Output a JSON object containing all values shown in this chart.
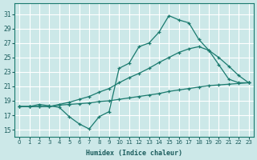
{
  "background_color": "#cce8e8",
  "grid_color": "#aacccc",
  "line_color": "#1a7a6e",
  "xlabel": "Humidex (Indice chaleur)",
  "xlim": [
    -0.5,
    23.5
  ],
  "ylim": [
    14,
    32.5
  ],
  "xticks": [
    0,
    1,
    2,
    3,
    4,
    5,
    6,
    7,
    8,
    9,
    10,
    11,
    12,
    13,
    14,
    15,
    16,
    17,
    18,
    19,
    20,
    21,
    22,
    23
  ],
  "yticks": [
    15,
    17,
    19,
    21,
    23,
    25,
    27,
    29,
    31
  ],
  "line1_x": [
    0,
    1,
    2,
    3,
    4,
    5,
    6,
    7,
    8,
    9,
    10,
    11,
    12,
    13,
    14,
    15,
    16,
    17,
    18,
    19,
    20,
    21,
    22,
    23
  ],
  "line1_y": [
    18.2,
    18.2,
    18.2,
    18.2,
    18.4,
    18.5,
    18.6,
    18.7,
    18.9,
    19.0,
    19.2,
    19.4,
    19.6,
    19.8,
    20.0,
    20.3,
    20.5,
    20.7,
    20.9,
    21.1,
    21.2,
    21.3,
    21.4,
    21.5
  ],
  "line2_x": [
    0,
    1,
    2,
    3,
    4,
    5,
    6,
    7,
    8,
    9,
    10,
    11,
    12,
    13,
    14,
    15,
    16,
    17,
    18,
    19,
    20,
    21,
    22,
    23
  ],
  "line2_y": [
    18.2,
    18.2,
    18.2,
    18.2,
    18.5,
    18.8,
    19.2,
    19.6,
    20.2,
    20.7,
    21.5,
    22.2,
    22.8,
    23.5,
    24.3,
    25.0,
    25.7,
    26.2,
    26.5,
    26.0,
    25.0,
    23.8,
    22.5,
    21.5
  ],
  "line3_x": [
    0,
    1,
    2,
    3,
    4,
    5,
    6,
    7,
    8,
    9,
    10,
    11,
    12,
    13,
    14,
    15,
    16,
    17,
    18,
    19,
    20,
    21,
    22,
    23
  ],
  "line3_y": [
    18.2,
    18.2,
    18.5,
    18.3,
    18.1,
    16.8,
    15.8,
    15.1,
    16.8,
    17.5,
    23.5,
    24.2,
    26.5,
    27.0,
    28.5,
    30.8,
    30.2,
    29.8,
    27.5,
    26.0,
    24.0,
    22.0,
    21.5,
    21.5
  ]
}
